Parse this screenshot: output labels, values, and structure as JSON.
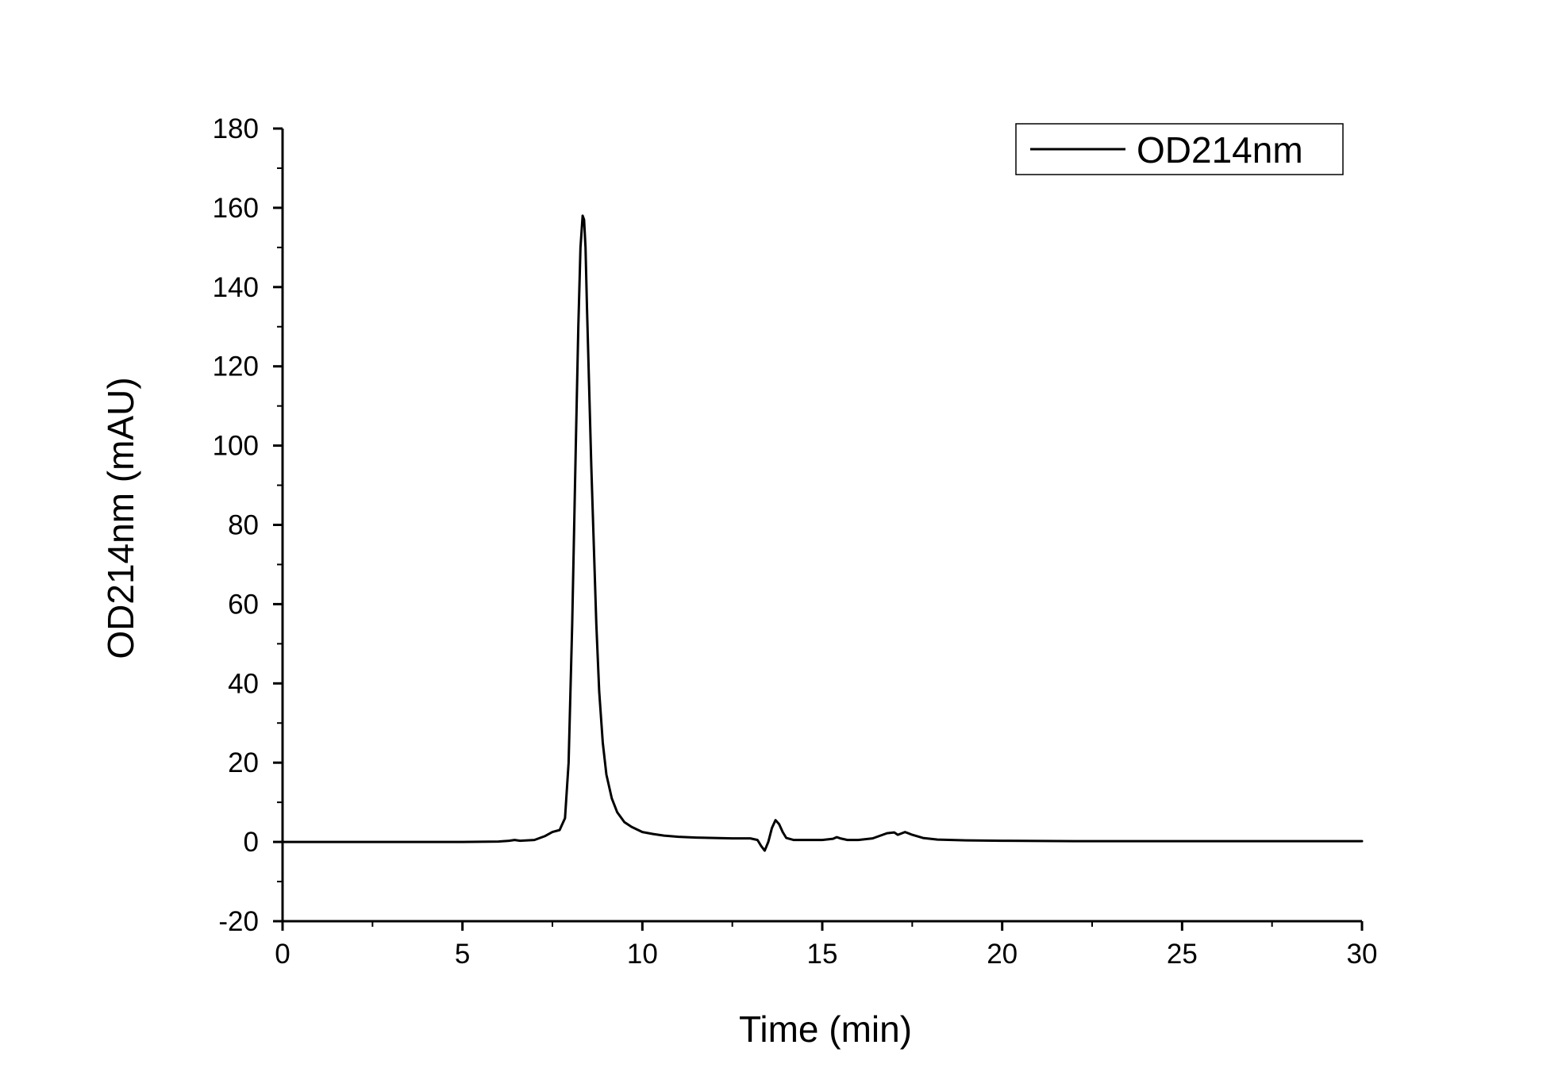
{
  "chart_data": {
    "type": "line",
    "xlabel": "Time (min)",
    "ylabel": "OD214nm (mAU)",
    "xlim": [
      0,
      30
    ],
    "ylim": [
      -20,
      180
    ],
    "x_ticks": [
      0,
      5,
      10,
      15,
      20,
      25,
      30
    ],
    "y_ticks": [
      -20,
      0,
      20,
      40,
      60,
      80,
      100,
      120,
      140,
      160,
      180
    ],
    "x_minor_step": 2.5,
    "y_minor_step": 10,
    "grid": false,
    "legend": {
      "position": "top-right",
      "entries": [
        "OD214nm"
      ]
    },
    "colors": {
      "line": "#000000",
      "axis": "#000000"
    },
    "series": [
      {
        "name": "OD214nm",
        "x": [
          0,
          5,
          6,
          6.3,
          6.45,
          6.6,
          7.0,
          7.3,
          7.5,
          7.7,
          7.85,
          7.95,
          8.05,
          8.15,
          8.22,
          8.28,
          8.34,
          8.38,
          8.42,
          8.46,
          8.52,
          8.58,
          8.65,
          8.72,
          8.8,
          8.9,
          9.0,
          9.15,
          9.3,
          9.5,
          9.7,
          10.0,
          10.3,
          10.6,
          11.0,
          11.5,
          12.0,
          12.5,
          13.0,
          13.2,
          13.3,
          13.4,
          13.5,
          13.6,
          13.7,
          13.8,
          13.9,
          14.0,
          14.2,
          14.5,
          15.0,
          15.3,
          15.4,
          15.5,
          15.7,
          16.0,
          16.4,
          16.8,
          17.0,
          17.1,
          17.3,
          17.5,
          17.8,
          18.2,
          19.0,
          20.0,
          22.0,
          25.0,
          28.0,
          30.0
        ],
        "y": [
          0,
          0,
          0.1,
          0.3,
          0.5,
          0.3,
          0.5,
          1.5,
          2.5,
          3.0,
          6,
          20,
          55,
          100,
          130,
          150,
          158,
          157,
          150,
          135,
          115,
          95,
          75,
          55,
          38,
          25,
          17,
          11,
          7.5,
          5,
          3.8,
          2.5,
          2,
          1.6,
          1.3,
          1.1,
          1.0,
          0.9,
          0.9,
          0.5,
          -1,
          -2.2,
          0,
          3.5,
          5.5,
          4.5,
          2.5,
          1,
          0.5,
          0.5,
          0.5,
          0.8,
          1.2,
          0.9,
          0.5,
          0.5,
          0.9,
          2.2,
          2.4,
          1.8,
          2.5,
          1.8,
          1.0,
          0.6,
          0.4,
          0.3,
          0.2,
          0.2,
          0.2,
          0.2
        ]
      }
    ]
  }
}
